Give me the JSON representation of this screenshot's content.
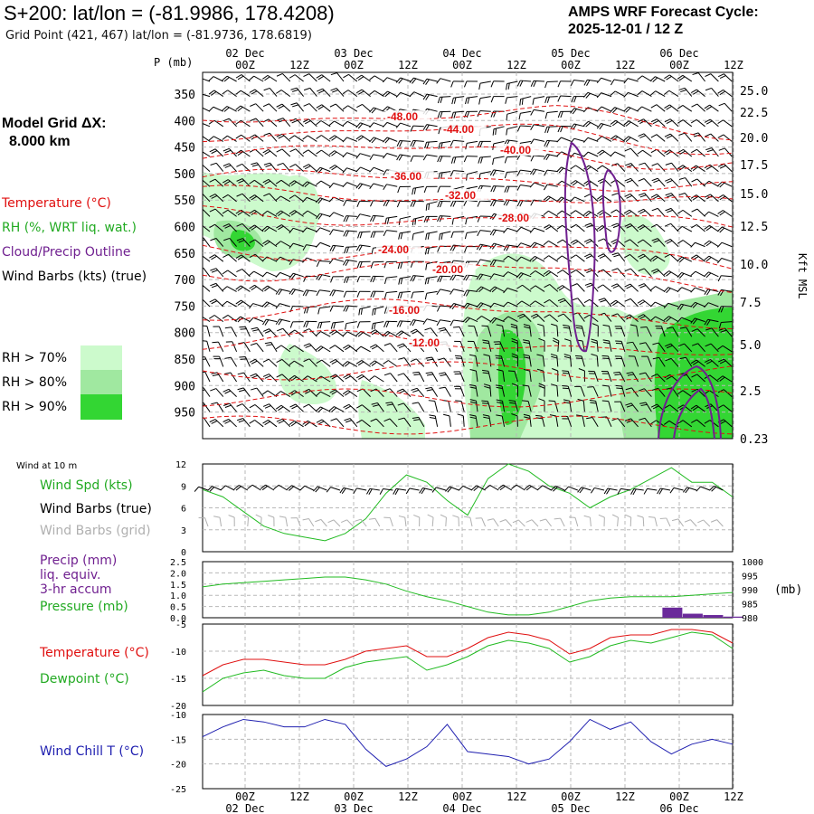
{
  "header": {
    "title": "S+200:  lat/lon = (-81.9986, 178.4208)",
    "subtitle": "Grid Point (421, 467) lat/lon = (-81.9736, 178.6819)",
    "cycle_line1": "AMPS WRF Forecast Cycle:",
    "cycle_line2": "2025-12-01 / 12  Z"
  },
  "model": {
    "line1": "Model Grid ΔX:",
    "line2": "8.000 km"
  },
  "legend": {
    "temperature": "Temperature (°C)",
    "rh": "RH (%, WRT liq. wat.)",
    "cloud": "Cloud/Precip Outline",
    "wind": "Wind Barbs (kts) (true)",
    "rh70": "RH > 70%",
    "rh80": "RH > 80%",
    "rh90": "RH > 90%",
    "colors": {
      "rh70": "#ccfacc",
      "rh80": "#a0e8a0",
      "rh90": "#33d633",
      "temp": "#e01010",
      "cloud": "#702090"
    }
  },
  "lower_labels": {
    "wind10": "Wind at 10 m",
    "wind_spd": "Wind Spd (kts)",
    "barbs_true": "Wind Barbs (true)",
    "barbs_grid": "Wind Barbs (grid)",
    "precip1": "Precip (mm)",
    "precip2": "liq. equiv.",
    "precip3": "3-hr accum",
    "pressure": "Pressure (mb)",
    "temperature": "Temperature (°C)",
    "dewpoint": "Dewpoint (°C)",
    "windchill": "Wind Chill T (°C)",
    "mb_unit": "(mb)"
  },
  "chart_data": {
    "type": "line",
    "time_axis": {
      "tick_labels": [
        "00Z",
        "12Z",
        "00Z",
        "12Z",
        "00Z",
        "12Z",
        "00Z",
        "12Z",
        "00Z",
        "12Z"
      ],
      "date_labels": [
        "02 Dec",
        "03 Dec",
        "04 Dec",
        "05 Dec",
        "06 Dec"
      ],
      "ylabel_p": "P (mb)",
      "ylabel_k": "Kft MSL"
    },
    "profile": {
      "pressure_ticks": [
        "350",
        "400",
        "450",
        "500",
        "550",
        "600",
        "650",
        "700",
        "750",
        "800",
        "850",
        "900",
        "950"
      ],
      "height_ticks": [
        "25.0",
        "22.5",
        "20.0",
        "17.5",
        "15.0",
        "12.5",
        "10.0",
        "7.5",
        "5.0",
        "2.5",
        "0.23"
      ],
      "isotherm_labels": [
        "-48.00",
        "-44.00",
        "-40.00",
        "-36.00",
        "-32.00",
        "-28.00",
        "-24.00",
        "-20.00",
        "-16.00",
        "-12.00"
      ]
    },
    "wind_speed": {
      "ylim": [
        0,
        12
      ],
      "yticks": [
        "0",
        "3",
        "6",
        "9",
        "12"
      ],
      "values": [
        8.5,
        7.5,
        5.5,
        3.5,
        2.5,
        2.0,
        1.5,
        2.5,
        4.5,
        8.0,
        10.5,
        9.5,
        7.0,
        5.0,
        10.0,
        12.0,
        11.0,
        9.0,
        8.0,
        6.0,
        7.5,
        8.5,
        10.0,
        11.5,
        9.5,
        9.5,
        7.5
      ]
    },
    "pressure": {
      "ylim": [
        980,
        1000
      ],
      "yticks": [
        "980",
        "985",
        "990",
        "995",
        "1000"
      ],
      "values": [
        991,
        992,
        992.5,
        993,
        993.5,
        994,
        994.5,
        994.5,
        993.5,
        992,
        989.5,
        987.5,
        986,
        984,
        982,
        981,
        981,
        982,
        984,
        986,
        987,
        987.5,
        987.5,
        987.5,
        988,
        988.5,
        989
      ]
    },
    "precip": {
      "ylim": [
        0,
        2.5
      ],
      "yticks": [
        "0.0",
        "0.5",
        "1.0",
        "1.5",
        "2.0",
        "2.5"
      ],
      "values": [
        0,
        0,
        0,
        0,
        0,
        0,
        0,
        0,
        0,
        0,
        0,
        0,
        0,
        0,
        0,
        0,
        0,
        0,
        0,
        0,
        0,
        0,
        0,
        0.45,
        0.18,
        0.12,
        0.05
      ]
    },
    "temperature": {
      "ylim": [
        -20,
        -5
      ],
      "yticks": [
        "-20",
        "-15",
        "-10",
        "-5"
      ],
      "values": [
        -14.5,
        -12.5,
        -11.5,
        -11.5,
        -12,
        -12.5,
        -12.5,
        -11.5,
        -10,
        -9.5,
        -9,
        -11,
        -11,
        -9.5,
        -7.5,
        -6.5,
        -7,
        -8,
        -10.5,
        -9.5,
        -7.5,
        -7,
        -7,
        -6,
        -6,
        -6.5,
        -8.5
      ]
    },
    "dewpoint": {
      "values": [
        -17.5,
        -15,
        -14,
        -13.5,
        -14.5,
        -15,
        -15,
        -13,
        -12,
        -11.5,
        -11,
        -13.5,
        -12.5,
        -11,
        -9,
        -8,
        -8.5,
        -9.5,
        -12,
        -11,
        -9,
        -8,
        -8.5,
        -7.5,
        -6.5,
        -7,
        -9.5
      ]
    },
    "wind_chill": {
      "ylim": [
        -25,
        -10
      ],
      "yticks": [
        "-25",
        "-20",
        "-15",
        "-10"
      ],
      "values": [
        -14.5,
        -12.5,
        -11,
        -11.5,
        -12.5,
        -12.5,
        -11,
        -12,
        -17,
        -20.5,
        -19,
        -16.5,
        -12,
        -17.5,
        -18,
        -18.5,
        -20,
        -19,
        -15.5,
        -11,
        -13,
        -11.5,
        -15.5,
        -18,
        -16,
        -15,
        -16
      ]
    }
  }
}
